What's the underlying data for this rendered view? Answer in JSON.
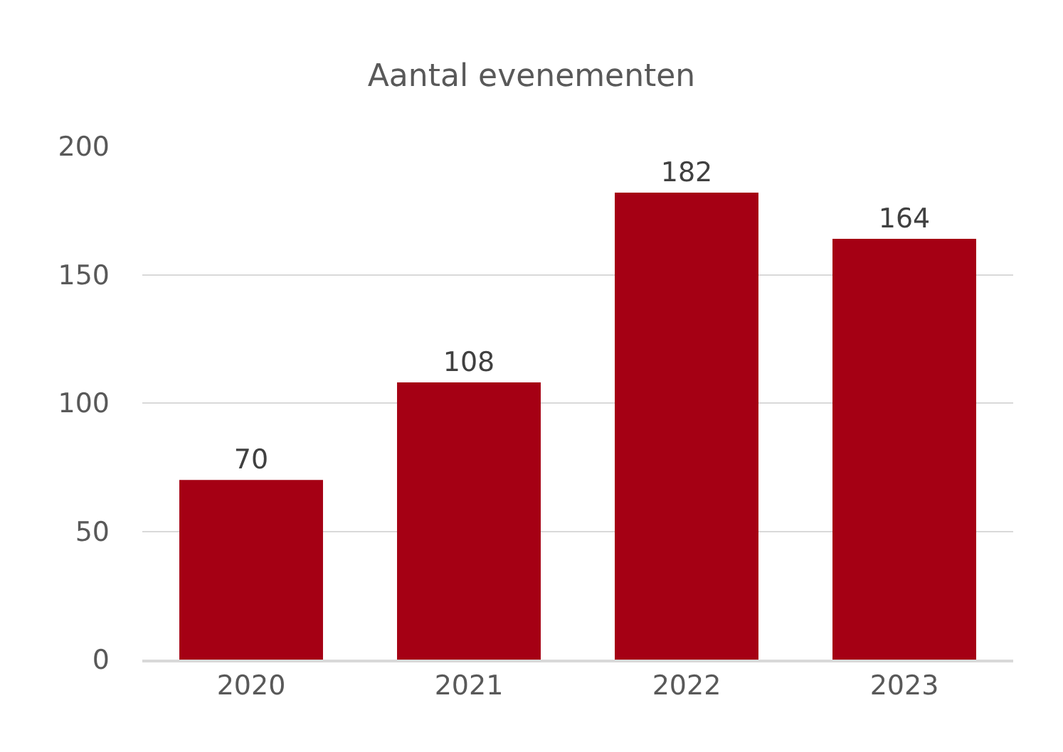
{
  "chart_data": {
    "type": "bar",
    "title": "Aantal evenementen",
    "categories": [
      "2020",
      "2021",
      "2022",
      "2023"
    ],
    "values": [
      70,
      108,
      182,
      164
    ],
    "color": "#a50014",
    "ylim": [
      0,
      200
    ],
    "yticks": [
      0,
      50,
      100,
      150,
      200
    ],
    "grid": "y",
    "data_labels": true
  }
}
